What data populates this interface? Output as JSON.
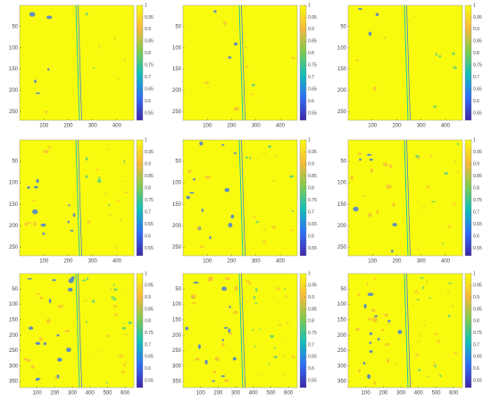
{
  "chart_data": [
    {
      "type": "heatmap",
      "xlim": [
        0,
        470
      ],
      "ylim": [
        0,
        270
      ],
      "xticks": [
        100,
        200,
        300,
        400
      ],
      "yticks": [
        50,
        100,
        150,
        200,
        250
      ],
      "clim": [
        0.52,
        1
      ],
      "cticks": [
        0.55,
        0.6,
        0.65,
        0.7,
        0.75,
        0.8,
        0.85,
        0.9,
        0.95,
        1
      ],
      "colormap": [
        "#3e26a8",
        "#2f6ef4",
        "#13beb8",
        "#7fcb4f",
        "#f6b93b",
        "#f9fb0e"
      ]
    },
    {
      "type": "heatmap",
      "xlim": [
        0,
        470
      ],
      "ylim": [
        0,
        270
      ],
      "xticks": [
        100,
        200,
        300,
        400
      ],
      "yticks": [
        50,
        100,
        150,
        200,
        250
      ],
      "clim": [
        0.52,
        1
      ],
      "cticks": [
        0.55,
        0.6,
        0.65,
        0.7,
        0.75,
        0.8,
        0.85,
        0.9,
        0.95,
        1
      ],
      "colormap": [
        "#3e26a8",
        "#2f6ef4",
        "#13beb8",
        "#7fcb4f",
        "#f6b93b",
        "#f9fb0e"
      ]
    },
    {
      "type": "heatmap",
      "xlim": [
        0,
        470
      ],
      "ylim": [
        0,
        270
      ],
      "xticks": [
        100,
        200,
        300,
        400
      ],
      "yticks": [
        50,
        100,
        150,
        200,
        250
      ],
      "clim": [
        0.52,
        1
      ],
      "cticks": [
        0.55,
        0.6,
        0.65,
        0.7,
        0.75,
        0.8,
        0.85,
        0.9,
        0.95,
        1
      ],
      "colormap": [
        "#3e26a8",
        "#2f6ef4",
        "#13beb8",
        "#7fcb4f",
        "#f6b93b",
        "#f9fb0e"
      ]
    },
    {
      "type": "heatmap",
      "xlim": [
        0,
        470
      ],
      "ylim": [
        0,
        270
      ],
      "xticks": [
        100,
        200,
        300,
        400
      ],
      "yticks": [
        50,
        100,
        150,
        200,
        250
      ],
      "clim": [
        0.52,
        1
      ],
      "cticks": [
        0.55,
        0.6,
        0.65,
        0.7,
        0.75,
        0.8,
        0.85,
        0.9,
        0.95,
        1
      ],
      "colormap": [
        "#3e26a8",
        "#2f6ef4",
        "#13beb8",
        "#7fcb4f",
        "#f6b93b",
        "#f9fb0e"
      ]
    },
    {
      "type": "heatmap",
      "xlim": [
        0,
        470
      ],
      "ylim": [
        0,
        270
      ],
      "xticks": [
        100,
        200,
        300,
        400
      ],
      "yticks": [
        50,
        100,
        150,
        200,
        250
      ],
      "clim": [
        0.52,
        1
      ],
      "cticks": [
        0.55,
        0.6,
        0.65,
        0.7,
        0.75,
        0.8,
        0.85,
        0.9,
        0.95,
        1
      ],
      "colormap": [
        "#3e26a8",
        "#2f6ef4",
        "#13beb8",
        "#7fcb4f",
        "#f6b93b",
        "#f9fb0e"
      ]
    },
    {
      "type": "heatmap",
      "xlim": [
        0,
        470
      ],
      "ylim": [
        0,
        270
      ],
      "xticks": [
        100,
        200,
        300,
        400
      ],
      "yticks": [
        50,
        100,
        150,
        200,
        250
      ],
      "clim": [
        0.52,
        1
      ],
      "cticks": [
        0.55,
        0.6,
        0.65,
        0.7,
        0.75,
        0.8,
        0.85,
        0.9,
        0.95,
        1
      ],
      "colormap": [
        "#3e26a8",
        "#2f6ef4",
        "#13beb8",
        "#7fcb4f",
        "#f6b93b",
        "#f9fb0e"
      ]
    },
    {
      "type": "heatmap",
      "xlim": [
        0,
        650
      ],
      "ylim": [
        0,
        370
      ],
      "xticks": [
        100,
        200,
        300,
        400,
        500,
        600
      ],
      "yticks": [
        50,
        100,
        150,
        200,
        250,
        300,
        350
      ],
      "clim": [
        0.52,
        1
      ],
      "cticks": [
        0.55,
        0.6,
        0.65,
        0.7,
        0.75,
        0.8,
        0.85,
        0.9,
        0.95,
        1
      ],
      "colormap": [
        "#3e26a8",
        "#2f6ef4",
        "#13beb8",
        "#7fcb4f",
        "#f6b93b",
        "#f9fb0e"
      ]
    },
    {
      "type": "heatmap",
      "xlim": [
        0,
        650
      ],
      "ylim": [
        0,
        370
      ],
      "xticks": [
        100,
        200,
        300,
        400,
        500,
        600
      ],
      "yticks": [
        50,
        100,
        150,
        200,
        250,
        300,
        350
      ],
      "clim": [
        0.52,
        1
      ],
      "cticks": [
        0.55,
        0.6,
        0.65,
        0.7,
        0.75,
        0.8,
        0.85,
        0.9,
        0.95,
        1
      ],
      "colormap": [
        "#3e26a8",
        "#2f6ef4",
        "#13beb8",
        "#7fcb4f",
        "#f6b93b",
        "#f9fb0e"
      ]
    },
    {
      "type": "heatmap",
      "xlim": [
        0,
        650
      ],
      "ylim": [
        0,
        370
      ],
      "xticks": [
        100,
        200,
        300,
        400,
        500,
        600
      ],
      "yticks": [
        50,
        100,
        150,
        200,
        250,
        300,
        350
      ],
      "clim": [
        0.52,
        1
      ],
      "cticks": [
        0.55,
        0.6,
        0.65,
        0.7,
        0.75,
        0.8,
        0.85,
        0.9,
        0.95,
        1
      ],
      "colormap": [
        "#3e26a8",
        "#2f6ef4",
        "#13beb8",
        "#7fcb4f",
        "#f6b93b",
        "#f9fb0e"
      ]
    }
  ]
}
